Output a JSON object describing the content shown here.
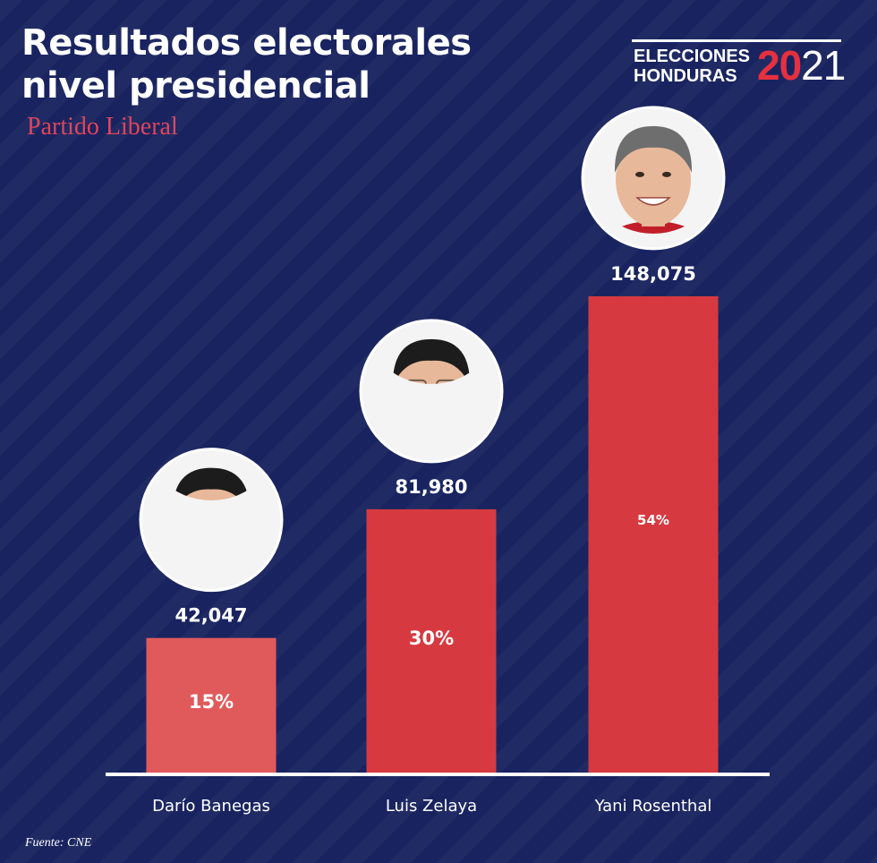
{
  "header": {
    "title_line1": "Resultados electorales",
    "title_line2": "nivel presidencial",
    "subtitle": "Partido Liberal"
  },
  "brand": {
    "line1": "ELECCIONES",
    "line2": "HONDURAS",
    "year_a": "20",
    "year_b": "21"
  },
  "footer": {
    "source": "Fuente: CNE"
  },
  "colors": {
    "background": "#18235f",
    "bar_primary": "#d63a40",
    "bar_light": "#e05a5c",
    "text": "#ffffff",
    "accent": "#e0455c"
  },
  "chart_data": {
    "type": "bar",
    "title": "Resultados electorales nivel presidencial",
    "subtitle": "Partido Liberal",
    "categories": [
      "Darío Banegas",
      "Luis Zelaya",
      "Yani Rosenthal"
    ],
    "values": [
      42047,
      81980,
      148075
    ],
    "value_labels": [
      "42,047",
      "81,980",
      "148,075"
    ],
    "percent_labels": [
      "15%",
      "30%",
      "54%"
    ],
    "ylim": [
      0,
      170000
    ],
    "xlabel": "",
    "ylabel": "",
    "grid": false,
    "legend": "none",
    "photos": [
      "photo-dario-banegas",
      "photo-luis-zelaya",
      "photo-yani-rosenthal"
    ]
  }
}
